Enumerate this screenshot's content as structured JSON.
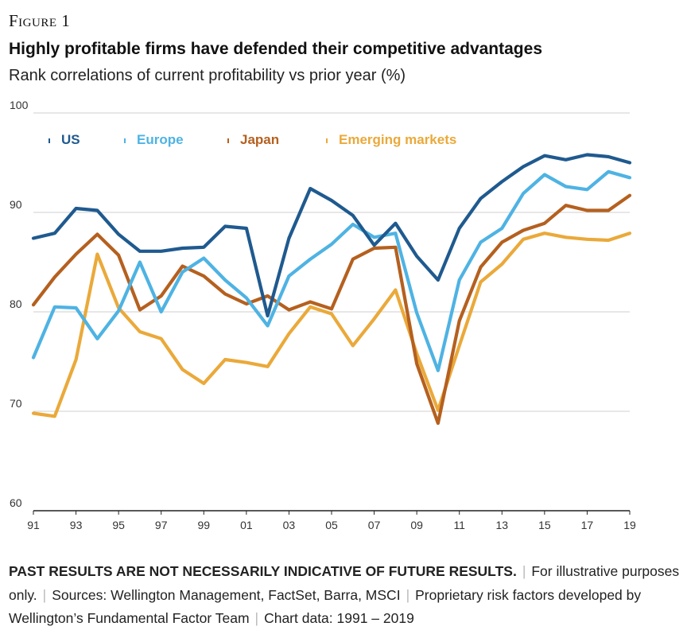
{
  "figure_label": "Figure 1",
  "title": "Highly profitable firms have defended their competitive advantages",
  "subtitle": "Rank correlations of current profitability vs prior year (%)",
  "footer": {
    "disclaimer": "PAST RESULTS ARE NOT NECESSARILY INDICATIVE OF FUTURE RESULTS.",
    "illustrative": "For illustrative purposes only.",
    "sources": "Sources: Wellington Management, FactSet, Barra, MSCI",
    "factors": "Proprietary risk factors developed by Wellington’s Fundamental Factor Team",
    "chart_data_note": "Chart data: 1991 – 2019"
  },
  "chart_data": {
    "type": "line",
    "ylim": [
      60,
      100
    ],
    "yticks": [
      60,
      70,
      80,
      90,
      100
    ],
    "xlim": [
      1991,
      2019
    ],
    "xtick_values": [
      1991,
      1993,
      1995,
      1997,
      1999,
      2001,
      2003,
      2005,
      2007,
      2009,
      2011,
      2013,
      2015,
      2017,
      2019
    ],
    "xtick_labels": [
      "91",
      "93",
      "95",
      "97",
      "99",
      "01",
      "03",
      "05",
      "07",
      "09",
      "11",
      "13",
      "15",
      "17",
      "19"
    ],
    "grid": "horizontal",
    "legend_position": "top-left",
    "x": [
      1991,
      1992,
      1993,
      1994,
      1995,
      1996,
      1997,
      1998,
      1999,
      2000,
      2001,
      2002,
      2003,
      2004,
      2005,
      2006,
      2007,
      2008,
      2009,
      2010,
      2011,
      2012,
      2013,
      2014,
      2015,
      2016,
      2017,
      2018,
      2019
    ],
    "series": [
      {
        "name": "US",
        "color": "#1f5a8f",
        "values": [
          87.4,
          87.9,
          90.4,
          90.2,
          87.8,
          86.1,
          86.1,
          86.4,
          86.5,
          88.6,
          88.4,
          79.6,
          87.4,
          92.4,
          91.2,
          89.7,
          86.7,
          88.9,
          85.6,
          83.2,
          88.4,
          91.4,
          93.1,
          94.6,
          95.7,
          95.3,
          95.8,
          95.6,
          95.0
        ]
      },
      {
        "name": "Europe",
        "color": "#4eb3e3",
        "values": [
          75.4,
          80.5,
          80.4,
          77.3,
          80.1,
          85.0,
          80.0,
          84.0,
          85.4,
          83.2,
          81.4,
          78.6,
          83.6,
          85.3,
          86.8,
          88.8,
          87.5,
          87.9,
          79.9,
          74.1,
          83.2,
          87.0,
          88.4,
          91.9,
          93.8,
          92.6,
          92.3,
          94.1,
          93.5
        ]
      },
      {
        "name": "Japan",
        "color": "#b5601f",
        "values": [
          80.7,
          83.5,
          85.8,
          87.8,
          85.7,
          80.2,
          81.6,
          84.6,
          83.6,
          81.8,
          80.8,
          81.6,
          80.2,
          81.0,
          80.3,
          85.3,
          86.4,
          86.5,
          74.8,
          68.8,
          79.1,
          84.5,
          87.0,
          88.2,
          88.9,
          90.7,
          90.2,
          90.2,
          91.7
        ]
      },
      {
        "name": "Emerging markets",
        "color": "#eaa93a",
        "values": [
          69.8,
          69.5,
          75.2,
          85.8,
          80.4,
          78.0,
          77.3,
          74.2,
          72.8,
          75.2,
          74.9,
          74.5,
          77.8,
          80.5,
          79.8,
          76.6,
          79.3,
          82.2,
          75.8,
          70.1,
          76.6,
          83.0,
          84.8,
          87.3,
          87.9,
          87.5,
          87.3,
          87.2,
          87.9
        ]
      }
    ]
  }
}
